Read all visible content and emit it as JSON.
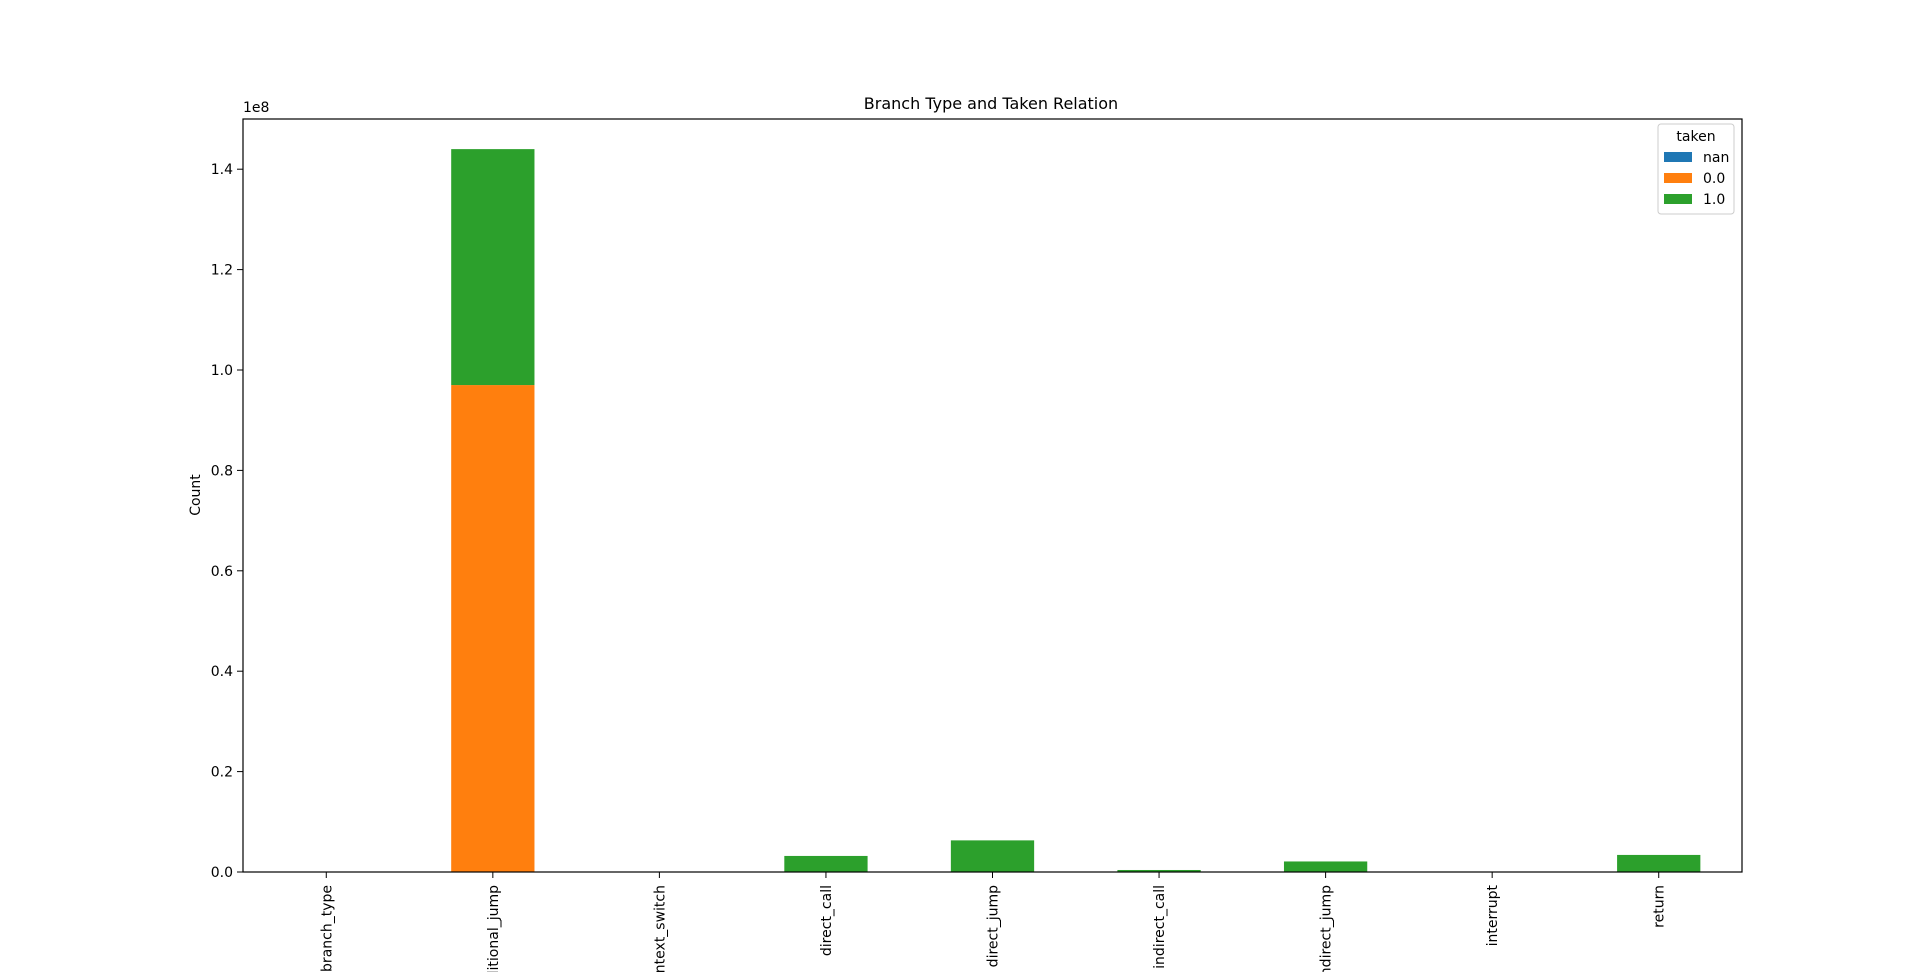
{
  "chart_data": {
    "type": "bar",
    "stacked": true,
    "title": "Branch Type and Taken Relation",
    "xlabel": "",
    "ylabel": "Count",
    "y_scale_label": "1e8",
    "y_scale": 100000000,
    "ylim": [
      0,
      1.5
    ],
    "yticks": [
      "0.0",
      "0.2",
      "0.4",
      "0.6",
      "0.8",
      "1.0",
      "1.2",
      "1.4"
    ],
    "categories": [
      "branch_type",
      "ditional_jump",
      "ontext_switch",
      "direct_call",
      "direct_jump",
      "indirect_call",
      "indirect_jump",
      "interrupt",
      "return"
    ],
    "series": [
      {
        "name": "nan",
        "color": "#1f77b4",
        "values": [
          0,
          0,
          0,
          0,
          0,
          0,
          0,
          0,
          0
        ]
      },
      {
        "name": "0.0",
        "color": "#ff7f0e",
        "values": [
          0,
          0.97,
          0,
          0,
          0,
          0,
          0,
          0,
          0
        ]
      },
      {
        "name": "1.0",
        "color": "#2ca02c",
        "values": [
          0,
          0.47,
          0,
          0.032,
          0.063,
          0.004,
          0.021,
          0,
          0.034
        ]
      }
    ],
    "legend": {
      "title": "taken",
      "position": "top-right"
    },
    "grid": false
  }
}
